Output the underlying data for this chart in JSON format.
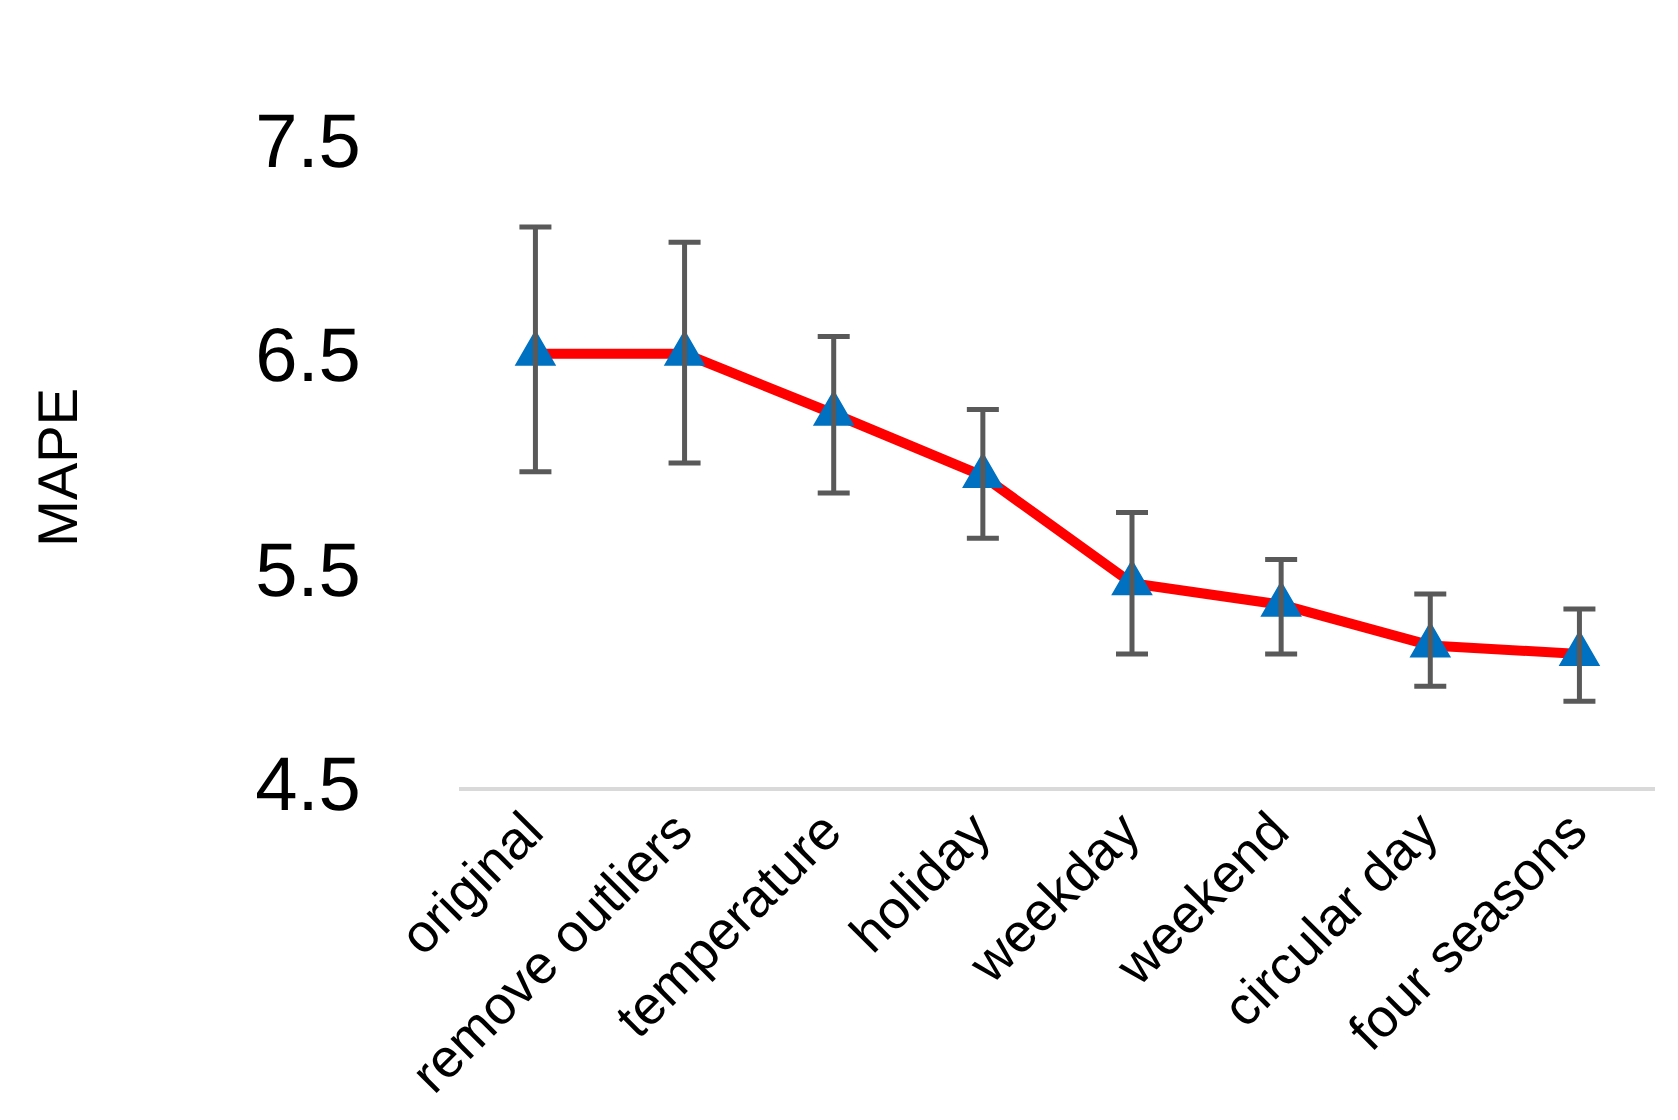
{
  "chart_data": {
    "type": "line",
    "ylabel": "MAPE",
    "categories": [
      "original",
      "remove outliers",
      "temperature",
      "holiday",
      "weekday",
      "weekend",
      "circular day",
      "four seasons"
    ],
    "series": [
      {
        "color": "#ff0000",
        "colors": [
          "#0070c0",
          "#0070c0",
          "#0070c0",
          "#0070c0",
          "#0070c0",
          "#0070c0",
          "#0070c0",
          "#0070c0"
        ],
        "values": [
          6.53,
          6.53,
          6.25,
          5.96,
          5.46,
          5.36,
          5.17,
          5.13
        ],
        "errors": [
          [
            5.98,
            7.12
          ],
          [
            6.02,
            7.05
          ],
          [
            5.88,
            6.61
          ],
          [
            5.67,
            6.27
          ],
          [
            5.13,
            5.79
          ],
          [
            5.13,
            5.57
          ],
          [
            4.98,
            5.41
          ],
          [
            4.91,
            5.34
          ]
        ]
      }
    ],
    "ylim": [
      4.5,
      7.5
    ],
    "yticks": [
      4.5,
      5.5,
      6.5,
      7.5
    ],
    "grid": false,
    "legend": false,
    "marker": "triangle",
    "line_style": "solid"
  }
}
